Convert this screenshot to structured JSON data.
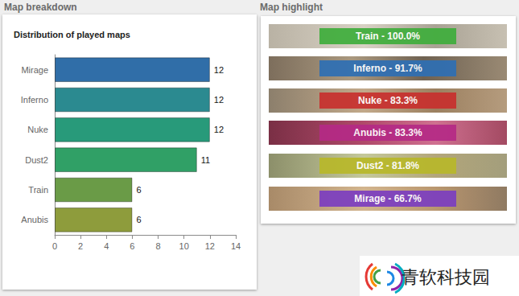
{
  "headers": {
    "left": "Map breakdown",
    "right": "Map highlight"
  },
  "chart_data": {
    "type": "bar",
    "title": "Distribution of played maps",
    "orientation": "horizontal",
    "categories": [
      "Mirage",
      "Inferno",
      "Nuke",
      "Dust2",
      "Train",
      "Anubis"
    ],
    "values": [
      12,
      12,
      12,
      11,
      6,
      6
    ],
    "colors": [
      "#306ea8",
      "#2b8a90",
      "#289a7a",
      "#30a066",
      "#6a9b47",
      "#8e9c3c"
    ],
    "xlim": [
      0,
      14
    ],
    "xticks": [
      0,
      2,
      4,
      6,
      8,
      10,
      12,
      14
    ],
    "data_labels": true,
    "grid": false
  },
  "highlights": [
    {
      "label": "Train - 100.0%",
      "color": "#3fae3c"
    },
    {
      "label": "Inferno - 91.7%",
      "color": "#2e6fb4"
    },
    {
      "label": "Nuke - 83.3%",
      "color": "#c8302e"
    },
    {
      "label": "Anubis - 83.3%",
      "color": "#b52a86"
    },
    {
      "label": "Dust2 - 81.8%",
      "color": "#b8b82a"
    },
    {
      "label": "Mirage - 66.7%",
      "color": "#7c3ec0"
    }
  ],
  "watermark": "青软科技园"
}
